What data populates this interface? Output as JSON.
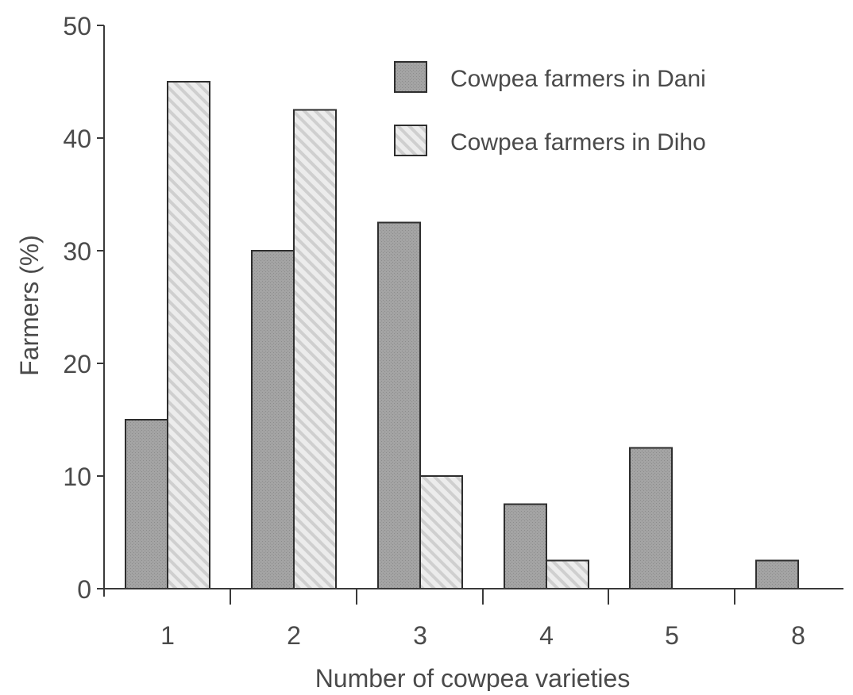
{
  "chart_data": {
    "type": "bar",
    "title": "",
    "xlabel": "Number of cowpea varieties",
    "ylabel": "Farmers (%)",
    "ylim": [
      0,
      50
    ],
    "yticks": [
      "0",
      "10",
      "20",
      "30",
      "40",
      "50"
    ],
    "categories": [
      "1",
      "2",
      "3",
      "4",
      "5",
      "8"
    ],
    "series": [
      {
        "name": "Cowpea farmers in Dani",
        "values": [
          15,
          30,
          32.5,
          7.5,
          12.5,
          2.5
        ],
        "color": "#a4a4a4",
        "pattern": "dense-stipple"
      },
      {
        "name": "Cowpea farmers in Diho",
        "values": [
          45,
          42.5,
          10,
          2.5,
          0,
          0
        ],
        "color": "#eaeaea",
        "pattern": "diagonal-hatch"
      }
    ],
    "legend_position": "top-right",
    "grid": false
  }
}
